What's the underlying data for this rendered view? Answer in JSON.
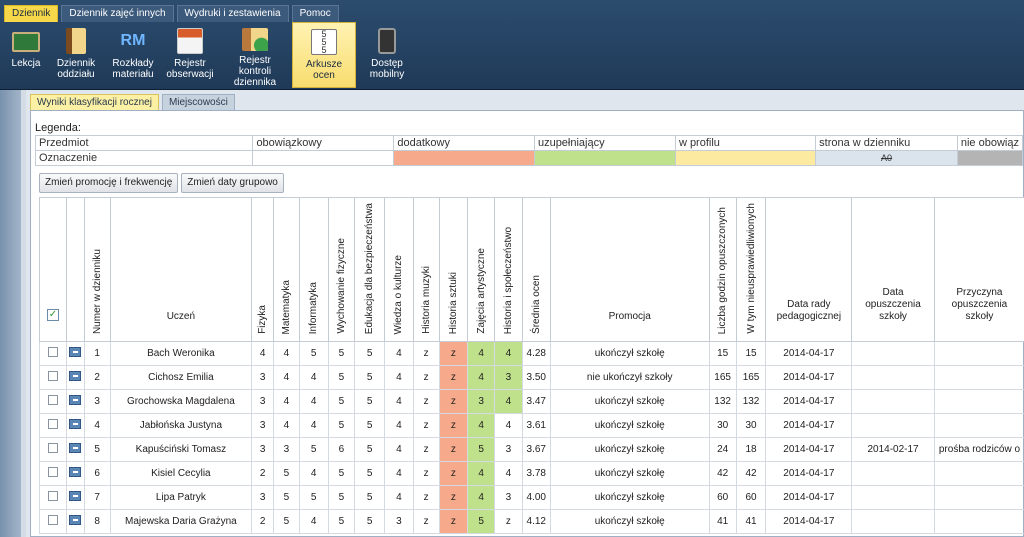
{
  "ribbon": {
    "tabs": [
      "Dziennik",
      "Dziennik zajęć innych",
      "Wydruki i zestawienia",
      "Pomoc"
    ],
    "tools": [
      {
        "label": "Lekcja",
        "icon": "lesson-icon"
      },
      {
        "label": "Dziennik oddziału",
        "icon": "class-journal-icon"
      },
      {
        "label": "Rozkłady materiału",
        "icon": "rm-curriculum-icon"
      },
      {
        "label": "Rejestr obserwacji",
        "icon": "observation-register-icon"
      },
      {
        "label": "Rejestr kontroli dziennika",
        "icon": "journal-control-icon"
      },
      {
        "label": "Arkusze ocen",
        "icon": "grade-sheets-icon"
      },
      {
        "label": "Dostęp mobilny",
        "icon": "mobile-access-icon"
      }
    ]
  },
  "subtabs": [
    "Wyniki klasyfikacji rocznej",
    "Miejscowości"
  ],
  "legend": {
    "title": "Legenda:",
    "row1_label": "Przedmiot",
    "row2_label": "Oznaczenie",
    "types": [
      "obowiązkowy",
      "dodatkowy",
      "uzupełniający",
      "w profilu",
      "strona w dzienniku",
      "nie obowiąz"
    ],
    "strikethrough_sample": "A0",
    "colors": [
      "#ffffff",
      "#f7a98c",
      "#bfe18b",
      "#fbeaa0",
      "#dbe3ec",
      "#b4b4b4"
    ]
  },
  "buttons": [
    "Zmień promocję i frekwencję",
    "Zmień daty grupowo"
  ],
  "grid": {
    "headers": {
      "nr": "Numer w dzienniku",
      "student": "Uczeń",
      "subjects": [
        "Fizyka",
        "Matematyka",
        "Informatyka",
        "Wychowanie fizyczne",
        "Edukacja dla bezpieczeństwa",
        "Wiedza o kulturze",
        "Historia muzyki",
        "Historia sztuki",
        "Zajęcia artystyczne",
        "Historia i społeczeństwo"
      ],
      "avg": "Średnia ocen",
      "promotion": "Promocja",
      "absent": "Liczba godzin opuszczonych",
      "unexcused": "W tym nieusprawiedliwionych",
      "board_date": "Data rady pedagogicznej",
      "leave_date": "Data opuszczenia szkoły",
      "leave_reason": "Przyczyna opuszczenia szkoły"
    },
    "rows": [
      {
        "nr": "1",
        "name": "Bach Weronika",
        "grades": [
          "4",
          "4",
          "5",
          "5",
          "5",
          "4",
          "z",
          "z",
          "4",
          "4"
        ],
        "avg": "4.28",
        "promotion": "ukończył szkołę",
        "absent": "15",
        "unexcused": "15",
        "board_date": "2014-04-17",
        "leave_date": "",
        "leave_reason": ""
      },
      {
        "nr": "2",
        "name": "Cichosz Emilia",
        "grades": [
          "3",
          "4",
          "4",
          "5",
          "5",
          "4",
          "z",
          "z",
          "4",
          "3"
        ],
        "avg": "3.50",
        "promotion": "nie ukończył szkoły",
        "absent": "165",
        "unexcused": "165",
        "board_date": "2014-04-17",
        "leave_date": "",
        "leave_reason": ""
      },
      {
        "nr": "3",
        "name": "Grochowska Magdalena",
        "grades": [
          "3",
          "4",
          "4",
          "5",
          "5",
          "4",
          "z",
          "z",
          "3",
          "4"
        ],
        "avg": "3.47",
        "promotion": "ukończył szkołę",
        "absent": "132",
        "unexcused": "132",
        "board_date": "2014-04-17",
        "leave_date": "",
        "leave_reason": ""
      },
      {
        "nr": "4",
        "name": "Jabłońska Justyna",
        "grades": [
          "3",
          "4",
          "4",
          "5",
          "5",
          "4",
          "z",
          "z",
          "4",
          "4"
        ],
        "avg": "3.61",
        "promotion": "ukończył szkołę",
        "absent": "30",
        "unexcused": "30",
        "board_date": "2014-04-17",
        "leave_date": "",
        "leave_reason": ""
      },
      {
        "nr": "5",
        "name": "Kapuściński Tomasz",
        "grades": [
          "3",
          "3",
          "5",
          "6",
          "5",
          "4",
          "z",
          "z",
          "5",
          "3"
        ],
        "avg": "3.67",
        "promotion": "ukończył szkołę",
        "absent": "24",
        "unexcused": "18",
        "board_date": "2014-04-17",
        "leave_date": "2014-02-17",
        "leave_reason": "prośba rodziców o"
      },
      {
        "nr": "6",
        "name": "Kisiel Cecylia",
        "grades": [
          "2",
          "5",
          "4",
          "5",
          "5",
          "4",
          "z",
          "z",
          "4",
          "4"
        ],
        "avg": "3.78",
        "promotion": "ukończył szkołę",
        "absent": "42",
        "unexcused": "42",
        "board_date": "2014-04-17",
        "leave_date": "",
        "leave_reason": ""
      },
      {
        "nr": "7",
        "name": "Lipa Patryk",
        "grades": [
          "3",
          "5",
          "5",
          "5",
          "5",
          "4",
          "z",
          "z",
          "4",
          "3"
        ],
        "avg": "4.00",
        "promotion": "ukończył szkołę",
        "absent": "60",
        "unexcused": "60",
        "board_date": "2014-04-17",
        "leave_date": "",
        "leave_reason": ""
      },
      {
        "nr": "8",
        "name": "Majewska Daria Grażyna",
        "grades": [
          "2",
          "5",
          "4",
          "5",
          "5",
          "3",
          "z",
          "z",
          "5",
          "z"
        ],
        "avg": "4.12",
        "promotion": "ukończył szkołę",
        "absent": "41",
        "unexcused": "41",
        "board_date": "2014-04-17",
        "leave_date": "",
        "leave_reason": ""
      }
    ]
  }
}
